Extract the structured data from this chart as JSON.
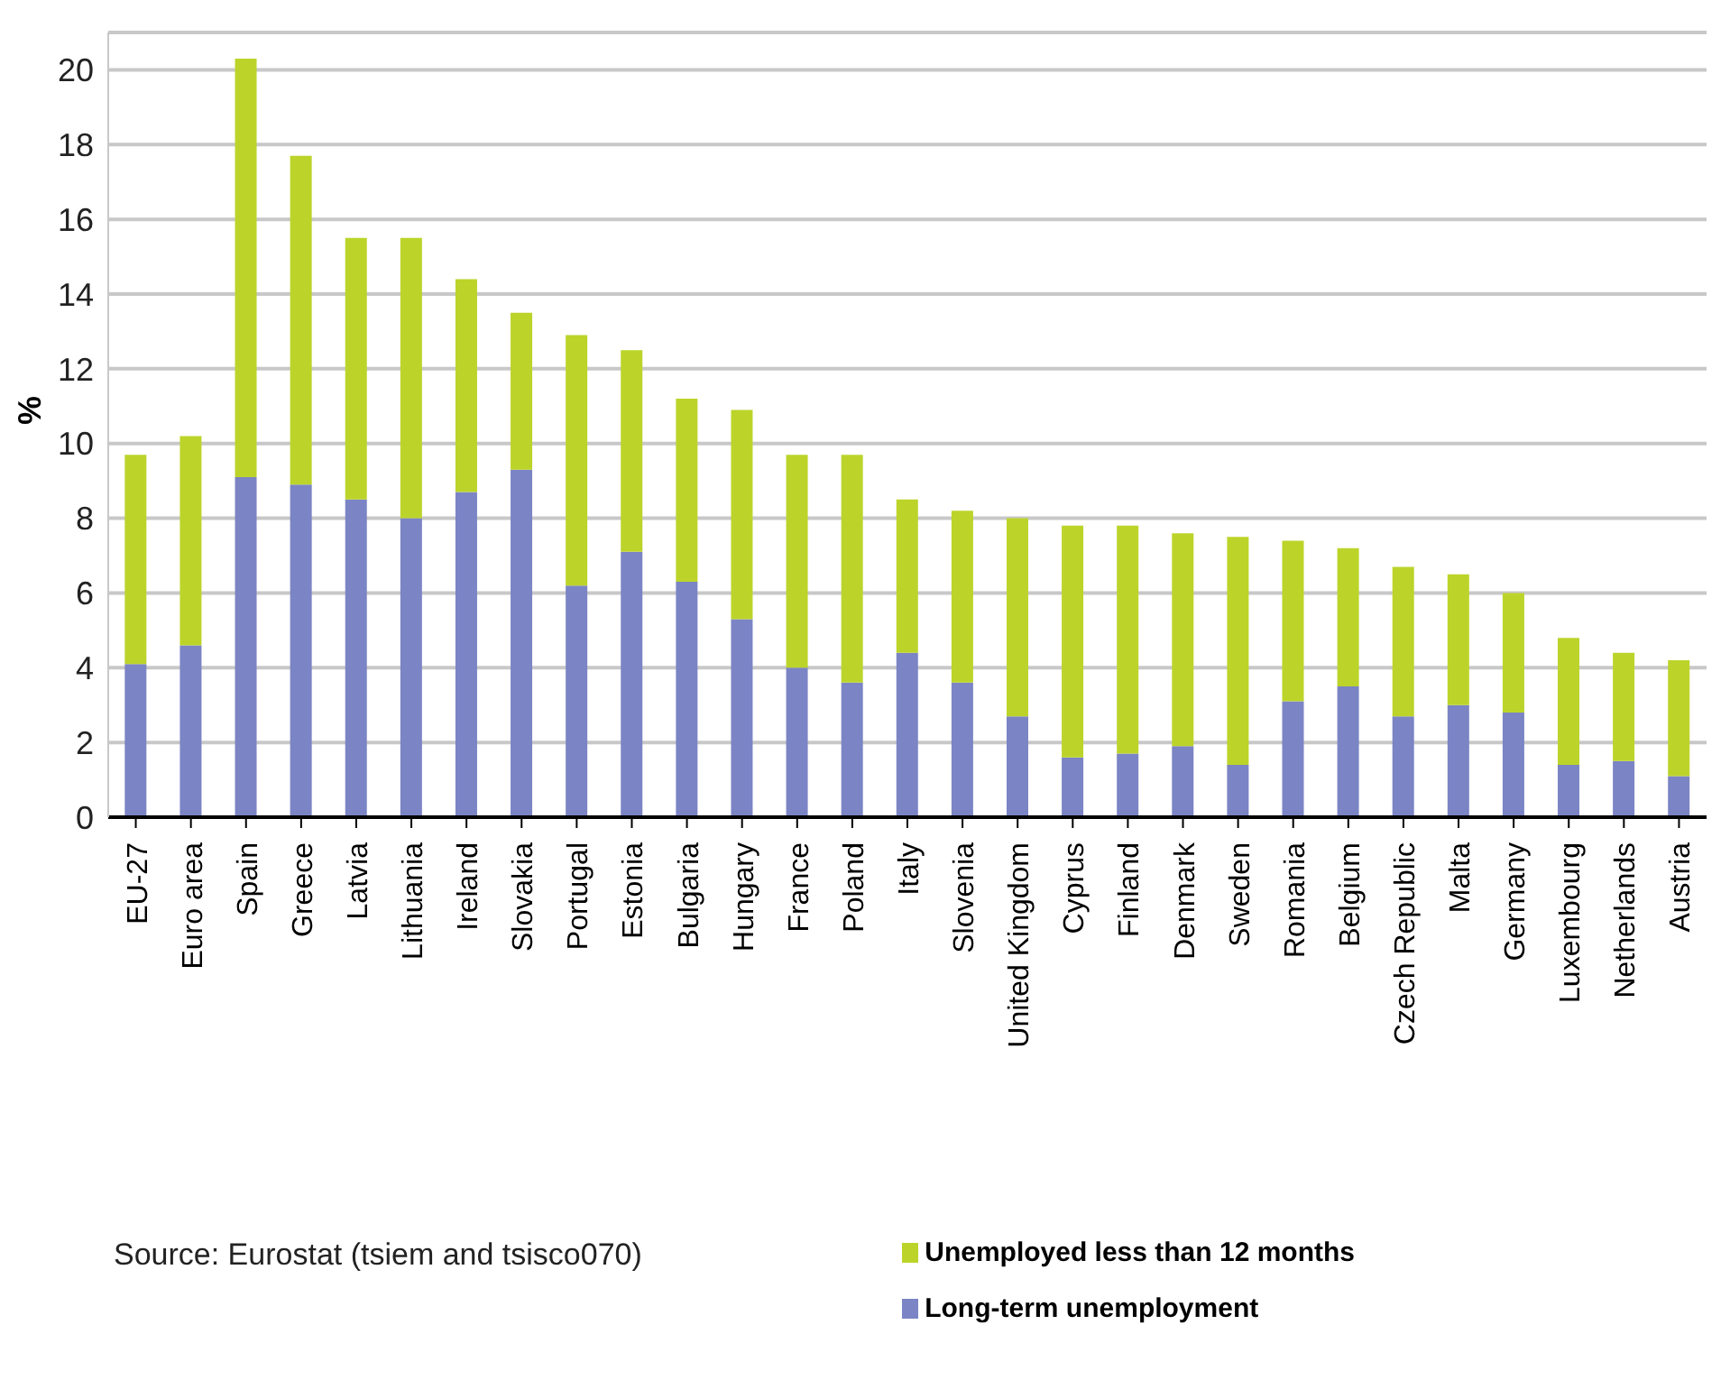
{
  "chart_data": {
    "type": "bar",
    "stacked": true,
    "ylabel": "%",
    "categories": [
      "EU-27",
      "Euro area",
      "Spain",
      "Greece",
      "Latvia",
      "Lithuania",
      "Ireland",
      "Slovakia",
      "Portugal",
      "Estonia",
      "Bulgaria",
      "Hungary",
      "France",
      "Poland",
      "Italy",
      "Slovenia",
      "United Kingdom",
      "Cyprus",
      "Finland",
      "Denmark",
      "Sweden",
      "Romania",
      "Belgium",
      "Czech Republic",
      "Malta",
      "Germany",
      "Luxembourg",
      "Netherlands",
      "Austria"
    ],
    "series": [
      {
        "name": "Long-term unemployment",
        "color": "#7b84c4",
        "values": [
          4.1,
          4.6,
          9.1,
          8.9,
          8.5,
          8.0,
          8.7,
          9.3,
          6.2,
          7.1,
          6.3,
          5.3,
          4.0,
          3.6,
          4.4,
          3.6,
          2.7,
          1.6,
          1.7,
          1.9,
          1.4,
          3.1,
          3.5,
          2.7,
          3.0,
          2.8,
          1.4,
          1.5,
          1.1
        ]
      },
      {
        "name": "Unemployed less than 12 months",
        "color": "#bcd42a",
        "values": [
          5.6,
          5.6,
          11.2,
          8.8,
          7.0,
          7.5,
          5.7,
          4.2,
          6.7,
          5.4,
          4.9,
          5.6,
          5.7,
          6.1,
          4.1,
          4.6,
          5.3,
          6.2,
          6.1,
          5.7,
          6.1,
          4.3,
          3.7,
          4.0,
          3.5,
          3.2,
          3.4,
          2.9,
          3.1
        ]
      }
    ],
    "ylim": [
      0,
      21
    ],
    "yticks": [
      0,
      2,
      4,
      6,
      8,
      10,
      12,
      14,
      16,
      18,
      20
    ],
    "grid": "y",
    "legend": "bottom right",
    "annotations": [
      "Source: Eurostat (tsiem and tsisco070)"
    ]
  }
}
